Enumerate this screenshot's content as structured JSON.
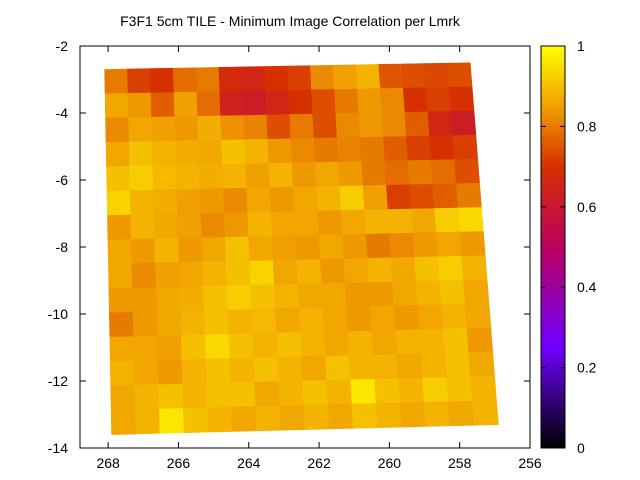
{
  "chart_data": {
    "type": "heatmap",
    "title": "F3F1 5cm TILE - Minimum Image Correlation per Lmrk",
    "xlim": [
      268.8,
      256
    ],
    "ylim": [
      -14,
      -2
    ],
    "x_reversed": true,
    "xticks": [
      268,
      266,
      264,
      262,
      260,
      258,
      256
    ],
    "yticks": [
      -2,
      -4,
      -6,
      -8,
      -10,
      -12,
      -14
    ],
    "colorbar": {
      "range": [
        0,
        1
      ],
      "ticks": [
        0,
        0.2,
        0.4,
        0.6,
        0.8,
        1
      ],
      "palette": "black-purple-red-orange-yellow"
    },
    "grid": false,
    "legend": "none",
    "tile_grid": {
      "columns": 16,
      "rows": 15,
      "top_left": [
        268.1,
        -2.7
      ],
      "top_right": [
        257.7,
        -2.5
      ],
      "bottom_left": [
        267.9,
        -13.6
      ],
      "bottom_right": [
        256.9,
        -13.3
      ],
      "row_order": "top-to-bottom",
      "column_order": "left-to-right",
      "values": [
        [
          0.8,
          0.72,
          0.7,
          0.78,
          0.8,
          0.68,
          0.66,
          0.7,
          0.72,
          0.82,
          0.85,
          0.88,
          0.75,
          0.74,
          0.73,
          0.74
        ],
        [
          0.86,
          0.84,
          0.76,
          0.85,
          0.78,
          0.64,
          0.62,
          0.66,
          0.7,
          0.74,
          0.8,
          0.84,
          0.82,
          0.7,
          0.72,
          0.7
        ],
        [
          0.82,
          0.86,
          0.85,
          0.84,
          0.87,
          0.83,
          0.81,
          0.74,
          0.8,
          0.74,
          0.82,
          0.84,
          0.82,
          0.76,
          0.66,
          0.62
        ],
        [
          0.86,
          0.9,
          0.88,
          0.87,
          0.86,
          0.9,
          0.88,
          0.84,
          0.82,
          0.8,
          0.81,
          0.8,
          0.76,
          0.72,
          0.7,
          0.72
        ],
        [
          0.9,
          0.92,
          0.89,
          0.88,
          0.87,
          0.88,
          0.85,
          0.88,
          0.84,
          0.86,
          0.84,
          0.8,
          0.78,
          0.8,
          0.78,
          0.74
        ],
        [
          0.93,
          0.88,
          0.87,
          0.85,
          0.84,
          0.82,
          0.86,
          0.84,
          0.86,
          0.88,
          0.92,
          0.85,
          0.72,
          0.74,
          0.76,
          0.8
        ],
        [
          0.84,
          0.88,
          0.86,
          0.85,
          0.82,
          0.84,
          0.88,
          0.86,
          0.86,
          0.84,
          0.86,
          0.88,
          0.88,
          0.86,
          0.92,
          0.94
        ],
        [
          0.86,
          0.84,
          0.88,
          0.84,
          0.86,
          0.9,
          0.86,
          0.85,
          0.84,
          0.86,
          0.84,
          0.8,
          0.82,
          0.84,
          0.86,
          0.84
        ],
        [
          0.86,
          0.82,
          0.85,
          0.86,
          0.88,
          0.9,
          0.93,
          0.86,
          0.88,
          0.84,
          0.86,
          0.88,
          0.86,
          0.9,
          0.92,
          0.88
        ],
        [
          0.84,
          0.84,
          0.86,
          0.87,
          0.9,
          0.92,
          0.9,
          0.88,
          0.86,
          0.86,
          0.84,
          0.84,
          0.86,
          0.88,
          0.9,
          0.86
        ],
        [
          0.8,
          0.84,
          0.86,
          0.88,
          0.9,
          0.88,
          0.89,
          0.86,
          0.88,
          0.86,
          0.84,
          0.86,
          0.84,
          0.86,
          0.88,
          0.86
        ],
        [
          0.86,
          0.86,
          0.85,
          0.9,
          0.94,
          0.9,
          0.88,
          0.9,
          0.88,
          0.86,
          0.88,
          0.86,
          0.88,
          0.88,
          0.9,
          0.84
        ],
        [
          0.88,
          0.86,
          0.84,
          0.88,
          0.9,
          0.88,
          0.9,
          0.88,
          0.86,
          0.9,
          0.88,
          0.88,
          0.86,
          0.88,
          0.9,
          0.86
        ],
        [
          0.86,
          0.88,
          0.9,
          0.88,
          0.9,
          0.9,
          0.86,
          0.88,
          0.9,
          0.88,
          0.96,
          0.9,
          0.88,
          0.92,
          0.9,
          0.88
        ],
        [
          0.86,
          0.88,
          0.96,
          0.9,
          0.88,
          0.86,
          0.88,
          0.86,
          0.88,
          0.86,
          0.9,
          0.88,
          0.86,
          0.88,
          0.86,
          0.88
        ]
      ]
    }
  }
}
